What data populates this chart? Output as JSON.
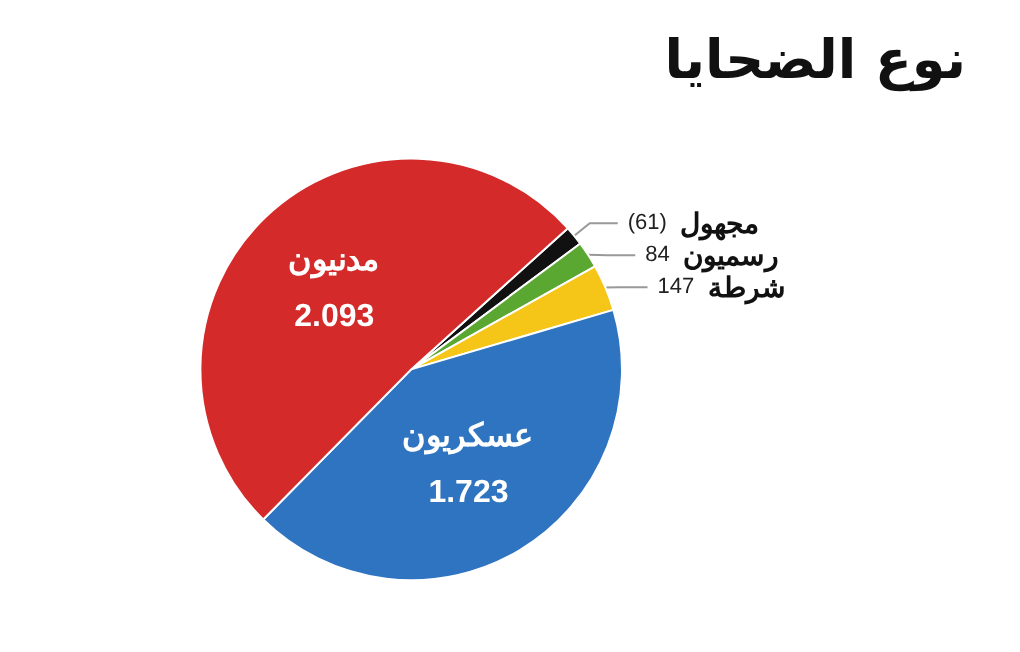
{
  "chart_data": {
    "type": "pie",
    "title": "نوع الضحايا",
    "categories": [
      "مجهول",
      "رسميون",
      "شرطة",
      "عسكريون",
      "مدنيون"
    ],
    "values": [
      61,
      84,
      147,
      1723,
      2093
    ],
    "value_labels": [
      "(61)",
      "84",
      "147",
      "1.723",
      "2.093"
    ],
    "colors": [
      "#111111",
      "#5aa832",
      "#f5c518",
      "#2e74c0",
      "#d42a2a"
    ],
    "legend": false
  }
}
